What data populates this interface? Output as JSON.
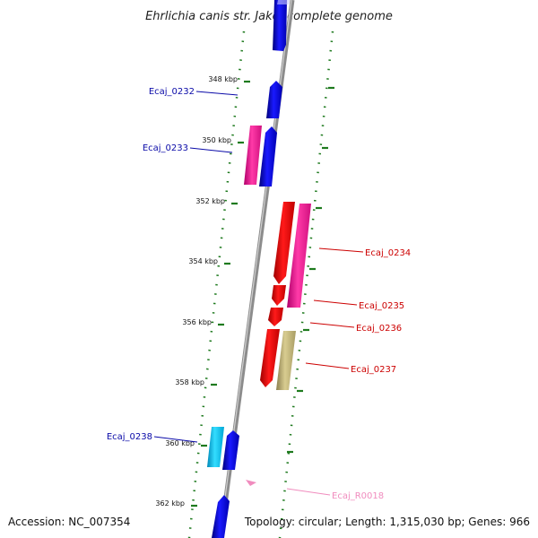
{
  "title": "Ehrlichia canis str. Jake, complete genome",
  "footer": {
    "accession": "Accession: NC_007354",
    "summary": "Topology: circular; Length: 1,315,030 bp; Genes: 966"
  },
  "ticks": [
    "348 kbp",
    "350 kbp",
    "352 kbp",
    "354 kbp",
    "356 kbp",
    "358 kbp",
    "360 kbp",
    "362 kbp"
  ],
  "genes": [
    {
      "label": "Ecaj_0232",
      "color": "#0a0aa8",
      "shape_color": "#1010e0",
      "strand": "forward"
    },
    {
      "label": "Ecaj_0233",
      "color": "#0a0aa8",
      "shape_color": "#1010e0",
      "strand": "forward"
    },
    {
      "label": "Ecaj_0234",
      "color": "#cc0000",
      "shape_color": "#e80000",
      "strand": "reverse"
    },
    {
      "label": "Ecaj_0235",
      "color": "#cc0000",
      "shape_color": "#e80000",
      "strand": "reverse"
    },
    {
      "label": "Ecaj_0236",
      "color": "#cc0000",
      "shape_color": "#e80000",
      "strand": "reverse"
    },
    {
      "label": "Ecaj_0237",
      "color": "#cc0000",
      "shape_color": "#e80000",
      "strand": "reverse"
    },
    {
      "label": "Ecaj_0238",
      "color": "#0a0aa8",
      "shape_color": "#00b4e6",
      "strand": "forward"
    },
    {
      "label": "Ecaj_R0018",
      "color": "#f08cbe",
      "shape_color": "#f08cbe",
      "strand": "reverse"
    }
  ],
  "colors": {
    "backbone": "#8c8c8c",
    "dotted_track": "#1e7a1e",
    "pseudogene": "#ee1193",
    "other_cds": "#b5aa70"
  }
}
